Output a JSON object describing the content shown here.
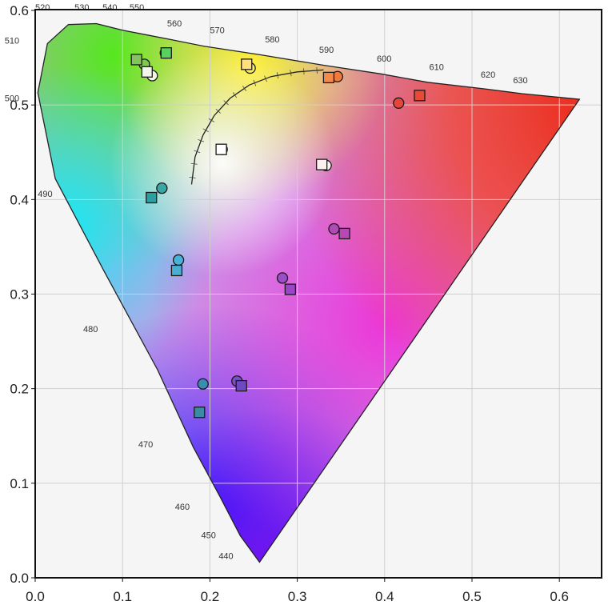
{
  "chart_data": {
    "type": "scatter",
    "title": "",
    "xlabel": "",
    "ylabel": "",
    "xlim": [
      0.0,
      0.65
    ],
    "ylim": [
      0.0,
      0.6
    ],
    "x_ticks": [
      "0.0",
      "0.1",
      "0.2",
      "0.3",
      "0.4",
      "0.5",
      "0.6"
    ],
    "y_ticks": [
      "0.0",
      "0.1",
      "0.2",
      "0.3",
      "0.4",
      "0.5",
      "0.6"
    ],
    "grid": true,
    "background": "CIE 1976 u'v' chromaticity diagram (spectral locus)",
    "spectral_locus": [
      {
        "nm": 380,
        "u": 0.2568,
        "v": 0.0165
      },
      {
        "nm": 440,
        "u": 0.2347,
        "v": 0.0445
      },
      {
        "nm": 450,
        "u": 0.212,
        "v": 0.085
      },
      {
        "nm": 460,
        "u": 0.181,
        "v": 0.138
      },
      {
        "nm": 470,
        "u": 0.14,
        "v": 0.22
      },
      {
        "nm": 480,
        "u": 0.0778,
        "v": 0.326
      },
      {
        "nm": 490,
        "u": 0.023,
        "v": 0.422
      },
      {
        "nm": 500,
        "u": 0.003,
        "v": 0.513
      },
      {
        "nm": 510,
        "u": 0.014,
        "v": 0.565
      },
      {
        "nm": 520,
        "u": 0.038,
        "v": 0.585
      },
      {
        "nm": 530,
        "u": 0.07,
        "v": 0.586
      },
      {
        "nm": 540,
        "u": 0.1,
        "v": 0.579
      },
      {
        "nm": 550,
        "u": 0.128,
        "v": 0.574
      },
      {
        "nm": 560,
        "u": 0.156,
        "v": 0.569
      },
      {
        "nm": 570,
        "u": 0.194,
        "v": 0.562
      },
      {
        "nm": 580,
        "u": 0.258,
        "v": 0.553
      },
      {
        "nm": 590,
        "u": 0.33,
        "v": 0.542
      },
      {
        "nm": 600,
        "u": 0.395,
        "v": 0.533
      },
      {
        "nm": 610,
        "u": 0.449,
        "v": 0.524
      },
      {
        "nm": 620,
        "u": 0.515,
        "v": 0.517
      },
      {
        "nm": 630,
        "u": 0.557,
        "v": 0.512
      },
      {
        "nm": 700,
        "u": 0.623,
        "v": 0.506
      }
    ],
    "wavelength_labels": [
      {
        "text": "520",
        "u": 0.0,
        "v": 0.6
      },
      {
        "text": "530",
        "u": 0.045,
        "v": 0.6
      },
      {
        "text": "540",
        "u": 0.077,
        "v": 0.6
      },
      {
        "text": "550",
        "u": 0.108,
        "v": 0.6
      },
      {
        "text": "560",
        "u": 0.151,
        "v": 0.583
      },
      {
        "text": "570",
        "u": 0.2,
        "v": 0.576
      },
      {
        "text": "580",
        "u": 0.263,
        "v": 0.566
      },
      {
        "text": "590",
        "u": 0.325,
        "v": 0.555
      },
      {
        "text": "600",
        "u": 0.391,
        "v": 0.546
      },
      {
        "text": "610",
        "u": 0.451,
        "v": 0.537
      },
      {
        "text": "620",
        "u": 0.51,
        "v": 0.529
      },
      {
        "text": "630",
        "u": 0.547,
        "v": 0.523
      },
      {
        "text": "510",
        "u": -0.035,
        "v": 0.565
      },
      {
        "text": "500",
        "u": -0.035,
        "v": 0.504
      },
      {
        "text": "490",
        "u": 0.003,
        "v": 0.403
      },
      {
        "text": "480",
        "u": 0.055,
        "v": 0.26
      },
      {
        "text": "470",
        "u": 0.118,
        "v": 0.138
      },
      {
        "text": "460",
        "u": 0.16,
        "v": 0.072
      },
      {
        "text": "450",
        "u": 0.19,
        "v": 0.042
      },
      {
        "text": "440",
        "u": 0.21,
        "v": 0.02
      }
    ],
    "planckian_locus": [
      {
        "u": 0.179,
        "v": 0.416
      },
      {
        "u": 0.183,
        "v": 0.445
      },
      {
        "u": 0.192,
        "v": 0.468
      },
      {
        "u": 0.205,
        "v": 0.489
      },
      {
        "u": 0.223,
        "v": 0.507
      },
      {
        "u": 0.245,
        "v": 0.521
      },
      {
        "u": 0.27,
        "v": 0.53
      },
      {
        "u": 0.3,
        "v": 0.535
      },
      {
        "u": 0.33,
        "v": 0.537
      }
    ],
    "series": [
      {
        "name": "",
        "marker": "circle",
        "points": [
          {
            "x": 0.125,
            "y": 0.543,
            "color": "#7ec850"
          },
          {
            "x": 0.149,
            "y": 0.555,
            "color": "#5cd45a"
          },
          {
            "x": 0.134,
            "y": 0.531,
            "color": "#f4f7e0"
          },
          {
            "x": 0.246,
            "y": 0.539,
            "color": "#ffef66"
          },
          {
            "x": 0.346,
            "y": 0.53,
            "color": "#f07a3c"
          },
          {
            "x": 0.416,
            "y": 0.502,
            "color": "#e8443a"
          },
          {
            "x": 0.214,
            "y": 0.453,
            "color": "#ffffff"
          },
          {
            "x": 0.333,
            "y": 0.436,
            "color": "#fbf2f2"
          },
          {
            "x": 0.145,
            "y": 0.412,
            "color": "#3aa6a6"
          },
          {
            "x": 0.164,
            "y": 0.336,
            "color": "#4ab2d6"
          },
          {
            "x": 0.342,
            "y": 0.369,
            "color": "#b04ab6"
          },
          {
            "x": 0.283,
            "y": 0.317,
            "color": "#9c4ec8"
          },
          {
            "x": 0.192,
            "y": 0.205,
            "color": "#3c8cb0"
          },
          {
            "x": 0.231,
            "y": 0.208,
            "color": "#7850c0"
          }
        ]
      },
      {
        "name": "",
        "marker": "square",
        "points": [
          {
            "x": 0.116,
            "y": 0.548,
            "color": "#84c45a"
          },
          {
            "x": 0.15,
            "y": 0.555,
            "color": "#58d25c"
          },
          {
            "x": 0.128,
            "y": 0.535,
            "color": "#f2f6ea"
          },
          {
            "x": 0.242,
            "y": 0.543,
            "color": "#ffe07a"
          },
          {
            "x": 0.336,
            "y": 0.529,
            "color": "#f48a48"
          },
          {
            "x": 0.44,
            "y": 0.51,
            "color": "#e84a38"
          },
          {
            "x": 0.213,
            "y": 0.453,
            "color": "#ffffff"
          },
          {
            "x": 0.328,
            "y": 0.437,
            "color": "#faf0f0"
          },
          {
            "x": 0.133,
            "y": 0.402,
            "color": "#2f9ea0"
          },
          {
            "x": 0.162,
            "y": 0.325,
            "color": "#48aed2"
          },
          {
            "x": 0.354,
            "y": 0.364,
            "color": "#b848b8"
          },
          {
            "x": 0.292,
            "y": 0.305,
            "color": "#9a46c8"
          },
          {
            "x": 0.188,
            "y": 0.175,
            "color": "#3a8ca4"
          },
          {
            "x": 0.236,
            "y": 0.203,
            "color": "#7048c4"
          }
        ]
      }
    ]
  }
}
